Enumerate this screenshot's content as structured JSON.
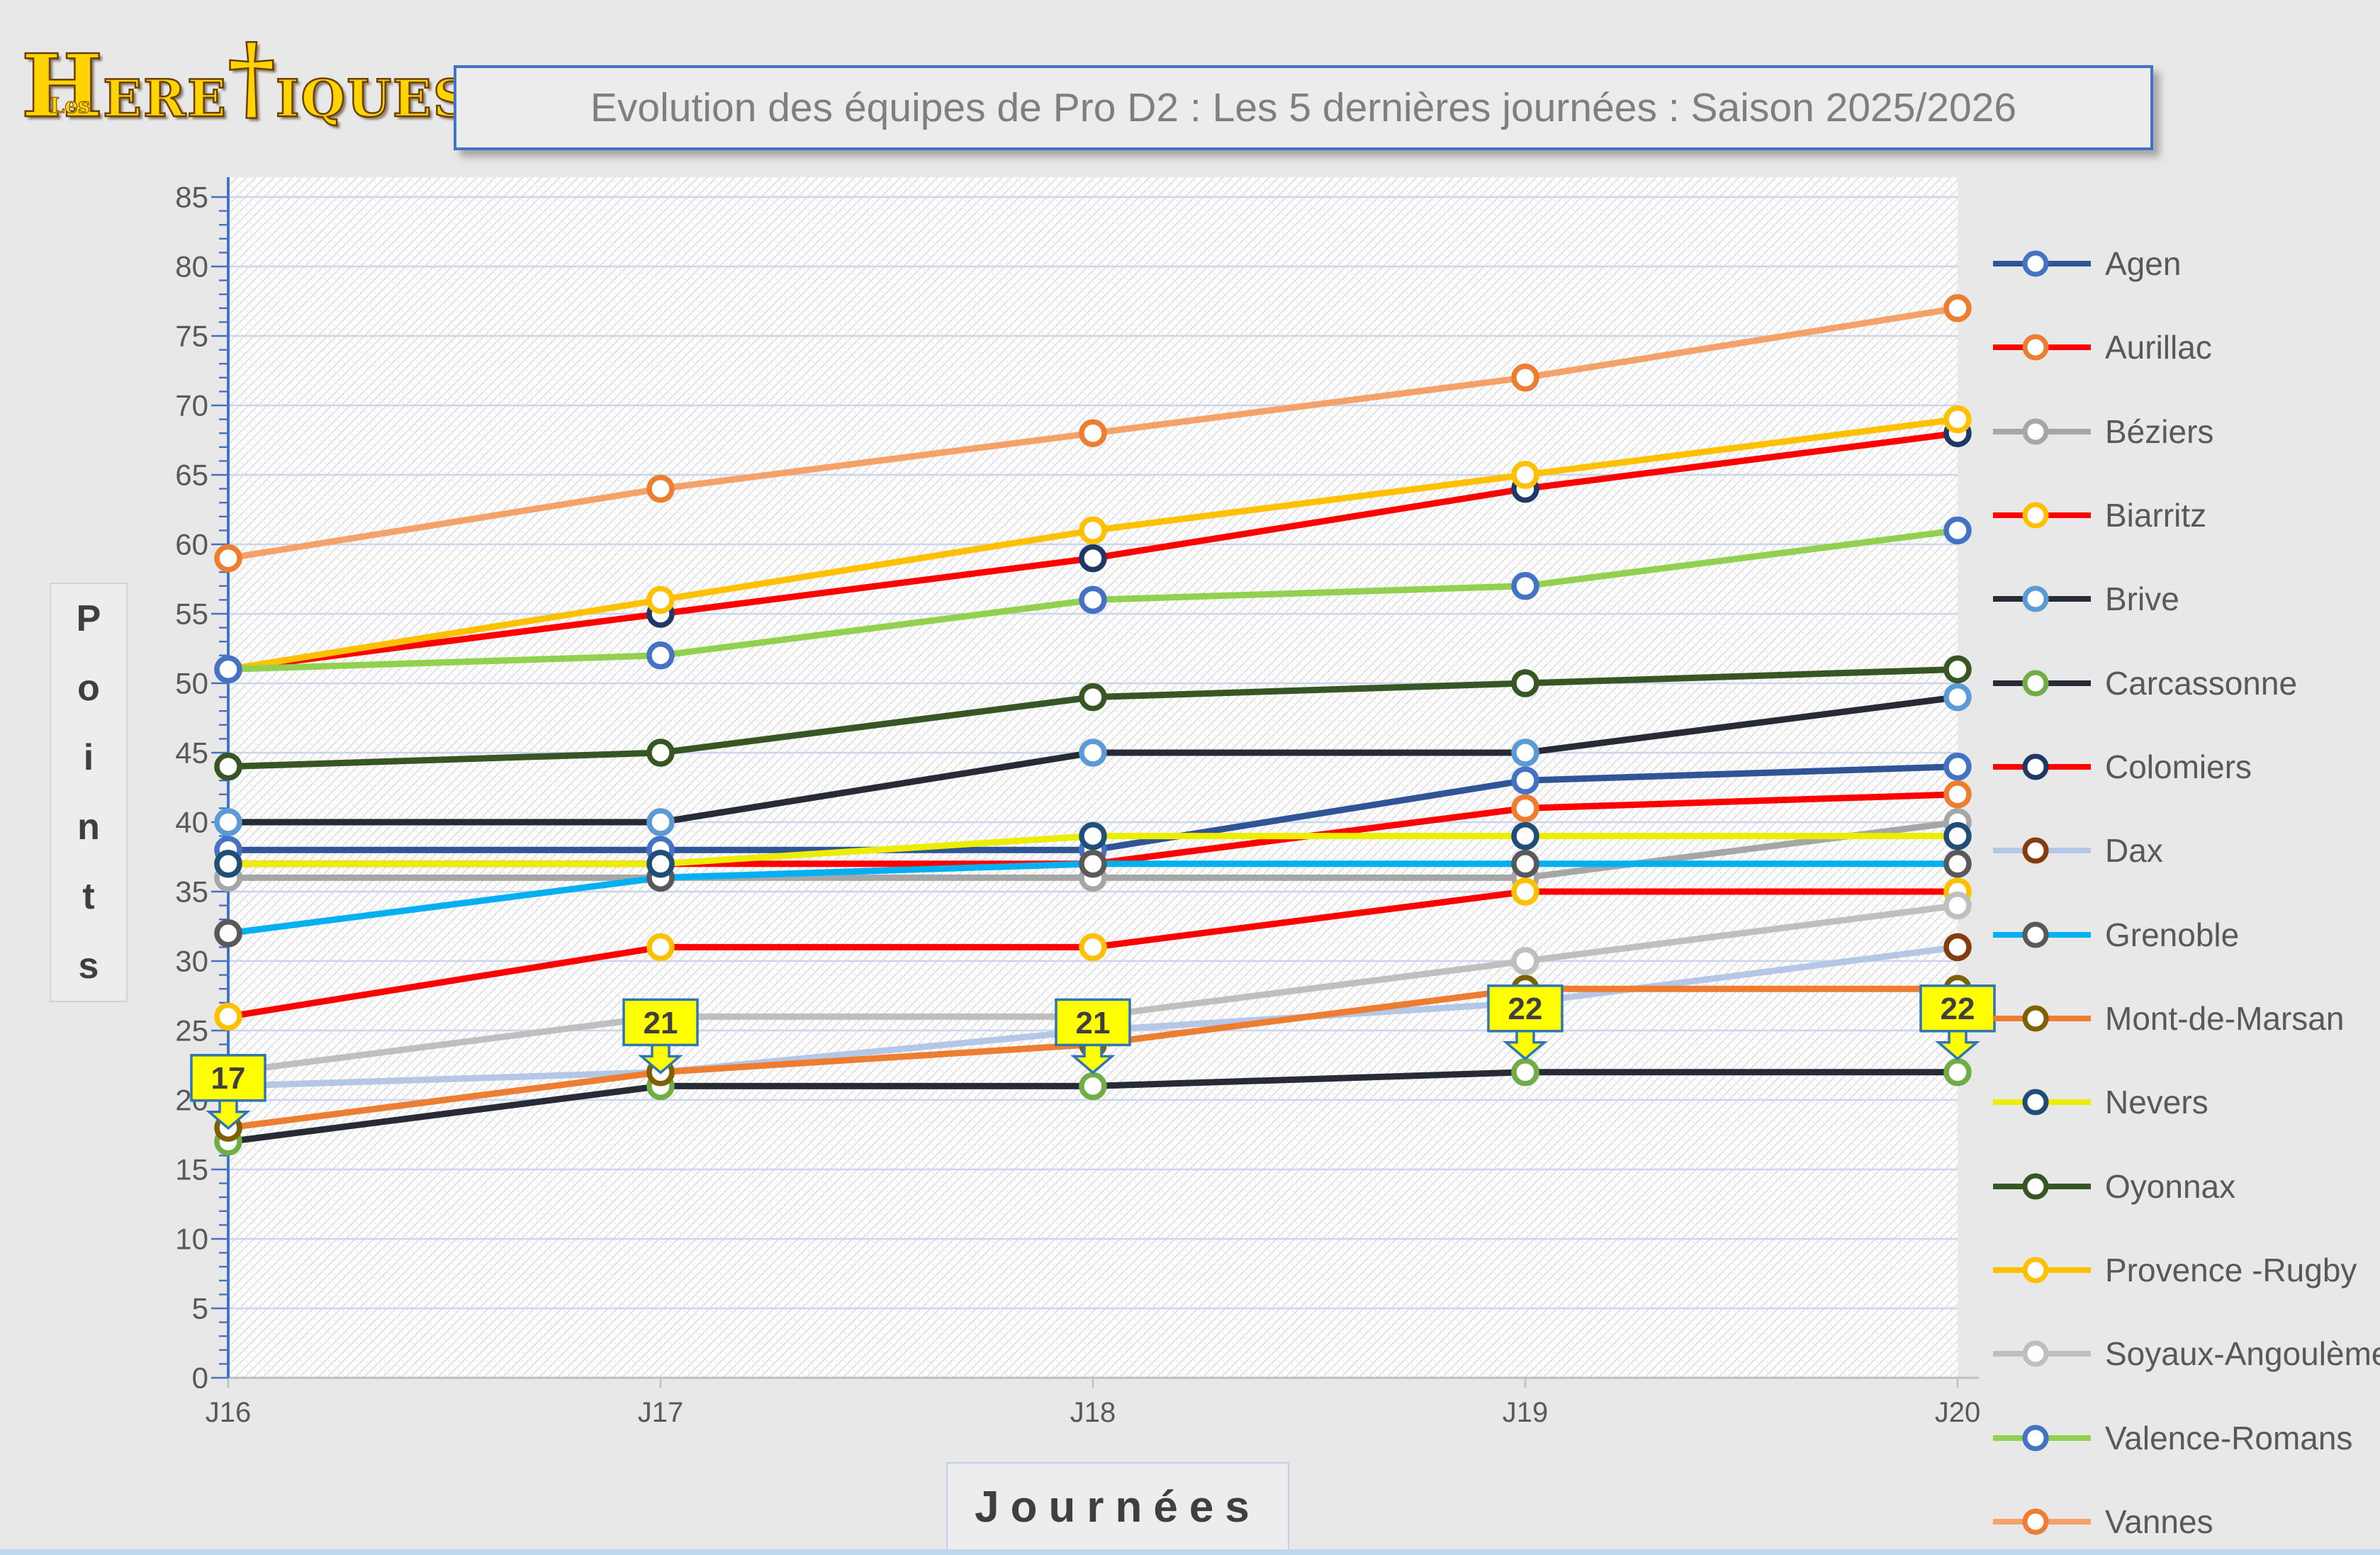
{
  "logo": {
    "prefix": "Les",
    "h": "H",
    "part1": "ERE",
    "sword": "†",
    "part2": "IQUES"
  },
  "title": "Evolution des équipes de Pro D2 : Les 5 dernières journées : Saison 2025/2026",
  "axes": {
    "ylabel": "Points",
    "xlabel": "Journées",
    "y_min": 0,
    "y_max": 85,
    "y_step": 5
  },
  "chart_data": {
    "type": "line",
    "title": "Evolution des équipes de Pro D2 : Les 5 dernières journées : Saison 2025/2026",
    "xlabel": "Journées",
    "ylabel": "Points",
    "x": [
      "J16",
      "J17",
      "J18",
      "J19",
      "J20"
    ],
    "ylim": [
      0,
      85
    ],
    "ytick_step": 5,
    "grid": true,
    "legend_position": "right",
    "series": [
      {
        "name": "Agen",
        "color": "#2F5597",
        "marker": "#4472C4",
        "values": [
          38,
          38,
          38,
          43,
          44
        ]
      },
      {
        "name": "Aurillac",
        "color": "#FF0000",
        "marker": "#ED7D31",
        "values": [
          37,
          37,
          37,
          41,
          42
        ]
      },
      {
        "name": "Béziers",
        "color": "#A6A6A6",
        "marker": "#A6A6A6",
        "values": [
          36,
          36,
          36,
          36,
          40
        ]
      },
      {
        "name": "Biarritz",
        "color": "#FF0000",
        "marker": "#FFC000",
        "values": [
          26,
          31,
          31,
          35,
          35
        ]
      },
      {
        "name": "Brive",
        "color": "#262B35",
        "marker": "#5B9BD5",
        "values": [
          40,
          40,
          45,
          45,
          49
        ]
      },
      {
        "name": "Carcassonne",
        "color": "#262B35",
        "marker": "#70AD47",
        "values": [
          17,
          21,
          21,
          22,
          22
        ]
      },
      {
        "name": "Colomiers",
        "color": "#FF0000",
        "marker": "#203864",
        "values": [
          51,
          55,
          59,
          64,
          68
        ]
      },
      {
        "name": "Dax",
        "color": "#B4C7E7",
        "marker": "#843C0C",
        "values": [
          21,
          22,
          25,
          27,
          31
        ]
      },
      {
        "name": "Grenoble",
        "color": "#00B0F0",
        "marker": "#595959",
        "values": [
          32,
          36,
          37,
          37,
          37
        ]
      },
      {
        "name": "Mont-de-Marsan",
        "color": "#ED7D31",
        "marker": "#7F6000",
        "values": [
          18,
          22,
          24,
          28,
          28
        ]
      },
      {
        "name": "Nevers",
        "color": "#EDED00",
        "marker": "#1F4E79",
        "values": [
          37,
          37,
          39,
          39,
          39
        ]
      },
      {
        "name": "Oyonnax",
        "color": "#375623",
        "marker": "#375623",
        "values": [
          44,
          45,
          49,
          50,
          51
        ]
      },
      {
        "name": "Provence -Rugby",
        "color": "#FFC000",
        "marker": "#FFC000",
        "values": [
          51,
          56,
          61,
          65,
          69
        ]
      },
      {
        "name": "Soyaux-Angoulème",
        "color": "#BFBFBF",
        "marker": "#BFBFBF",
        "values": [
          22,
          26,
          26,
          30,
          34
        ]
      },
      {
        "name": "Valence-Romans",
        "color": "#92D050",
        "marker": "#4472C4",
        "values": [
          51,
          52,
          56,
          57,
          61
        ]
      },
      {
        "name": "Vannes",
        "color": "#F4A269",
        "marker": "#ED7D31",
        "values": [
          59,
          64,
          68,
          72,
          77
        ]
      }
    ],
    "annotations": {
      "series": "Carcassonne",
      "values": [
        17,
        21,
        21,
        22,
        22
      ],
      "fill": "#FFFF00",
      "border": "#2E75B6"
    }
  },
  "colors": {
    "page_bg": "#E8E8E8",
    "plot_bg": "#FFFFFF",
    "hatch_strong": "#E0E0E0",
    "hatch_soft": "#EFEFEF",
    "grid": "#C9D6EE",
    "axis_y": "#4472C4",
    "axis_x": "#BFBFBF",
    "axis_text": "#595959",
    "title_text": "#7F7F7F",
    "callout_fill": "#FFFF00",
    "callout_border": "#2E75B6",
    "bottom_strip": "#BDD7EE"
  }
}
